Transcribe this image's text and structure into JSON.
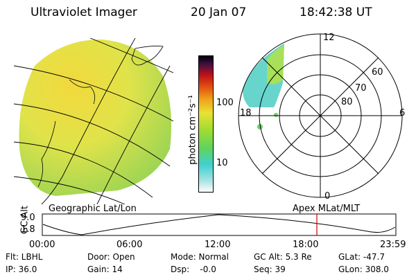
{
  "header": {
    "title": "Ultraviolet Imager",
    "date": "20 Jan 07",
    "time": "18:42:38 UT"
  },
  "colorbar": {
    "unit_label": "photon cm⁻²s⁻¹",
    "tick_100": "100",
    "tick_10": "10",
    "scale": "log"
  },
  "polar_plot": {
    "mlt_labels": {
      "top": "12",
      "left": "18",
      "right": "6",
      "bottom": "0"
    },
    "lat_labels": {
      "c60": "60",
      "c70": "70",
      "c80": "80"
    }
  },
  "geo_label": "Geographic Lat/Lon",
  "apex_label": "Apex MLat/MLT",
  "timeline": {
    "y_axis_label": "GC Alt",
    "y_top": "9.0",
    "y_bottom": "1.8",
    "ticks": [
      "00:00",
      "06:00",
      "12:00",
      "18:00",
      "23:59"
    ],
    "marker_color": "#cc0000"
  },
  "footer": {
    "row1": {
      "filter": "Flt: LBHL",
      "door": "Door: Open",
      "mode": "Mode: Normal",
      "gc_alt": "GC Alt: 5.3 Re",
      "glat": "GLat: -47.7"
    },
    "row2": {
      "ip": "IP: 36.0",
      "gain": "Gain: 14",
      "dsp": "Dsp:    -0.0",
      "seq": "Seq: 39",
      "glon": "GLon: 308.0"
    }
  },
  "colors": {
    "image_fill": "#d4e84a",
    "image_bright": "#f2d93c",
    "image_low": "#a8d84e",
    "aurora": "#5fd3c9"
  }
}
